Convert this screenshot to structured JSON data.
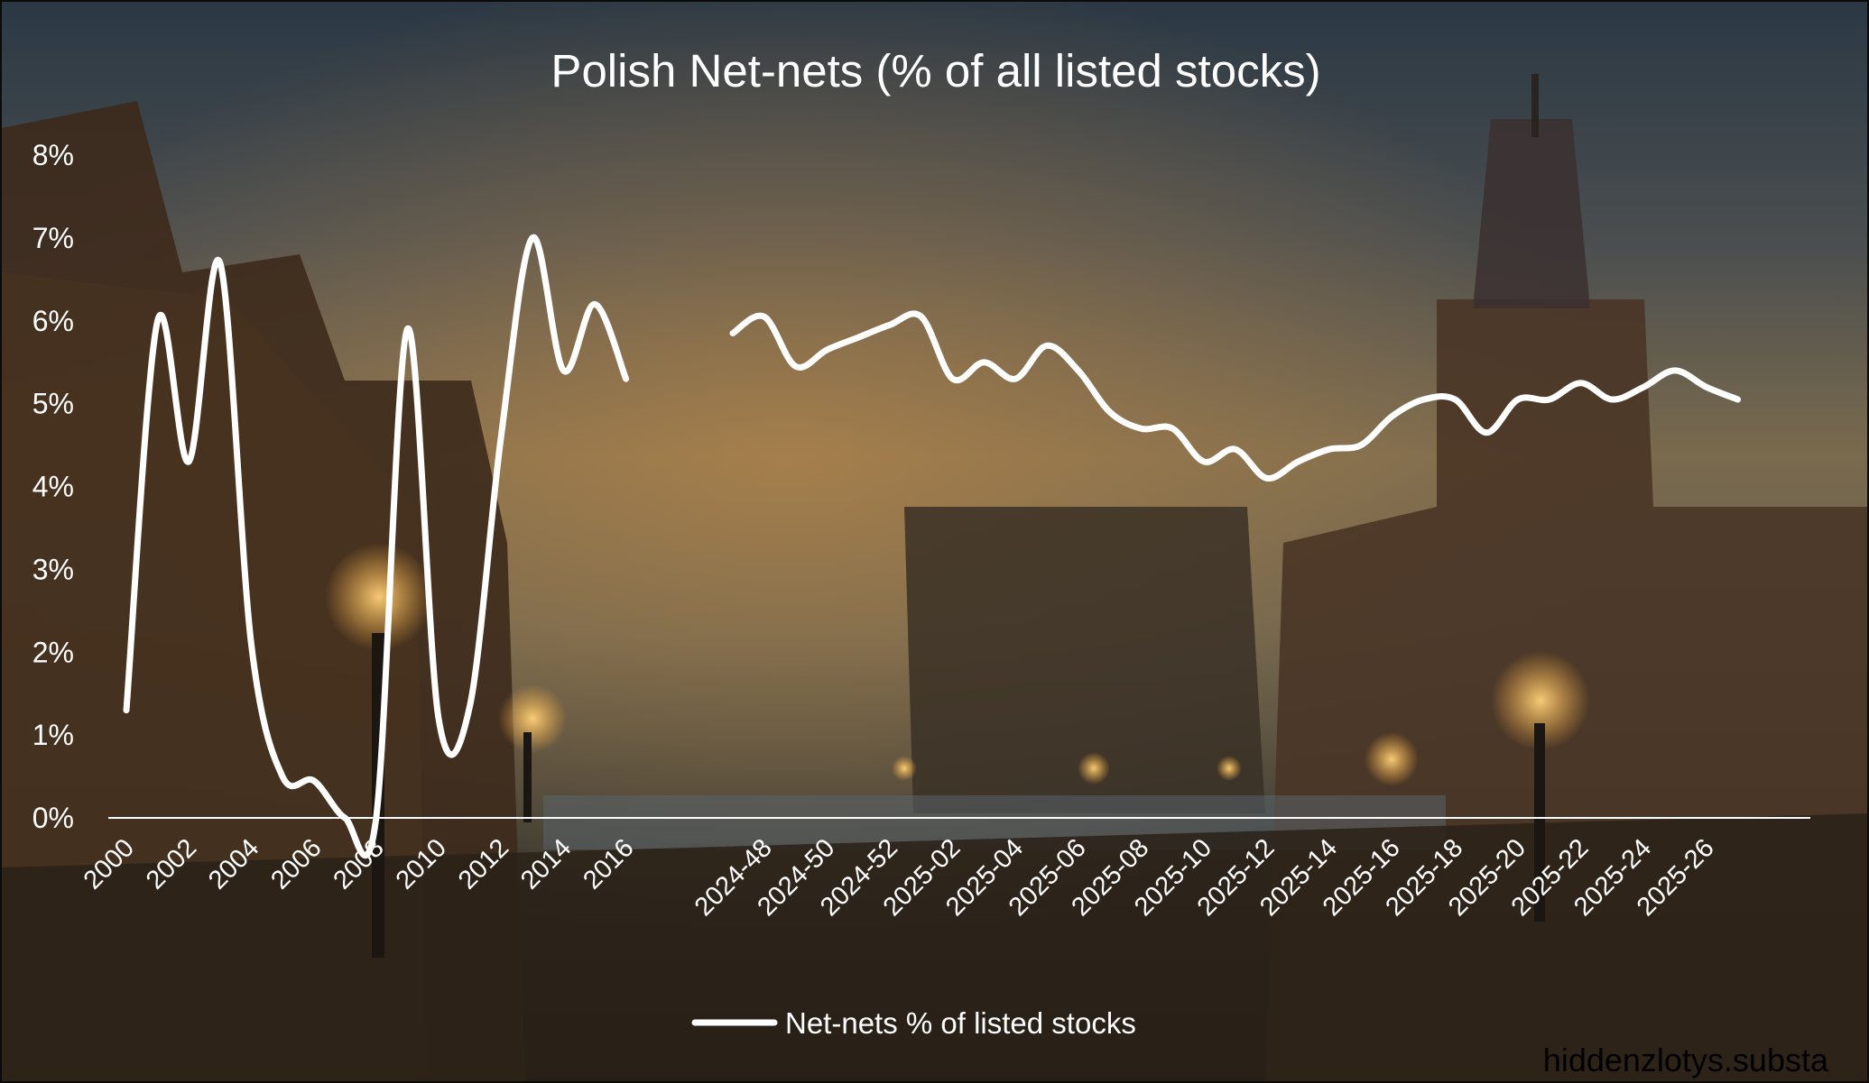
{
  "chart_data": {
    "type": "line",
    "title": "Polish Net-nets (% of all listed stocks)",
    "xlabel": "",
    "ylabel": "",
    "ylim": [
      0,
      8
    ],
    "y_ticks": [
      "0%",
      "1%",
      "2%",
      "3%",
      "4%",
      "5%",
      "6%",
      "7%",
      "8%"
    ],
    "grid": false,
    "legend_position": "bottom-center",
    "line_color": "#ffffff",
    "segments": [
      {
        "x_tick_labels": [
          "2000",
          "2002",
          "2004",
          "2006",
          "2008",
          "2010",
          "2012",
          "2014",
          "2016"
        ],
        "x": [
          2000,
          2001,
          2002,
          2003,
          2004,
          2005,
          2006,
          2007,
          2008,
          2009,
          2010,
          2011,
          2012,
          2013,
          2014,
          2015,
          2016
        ],
        "values": [
          1.3,
          6.0,
          4.3,
          6.7,
          2.1,
          0.5,
          0.45,
          0.0,
          0.0,
          5.9,
          1.2,
          1.35,
          4.6,
          7.0,
          5.4,
          6.2,
          5.3
        ]
      },
      {
        "x_tick_labels": [
          "2024-48",
          "2024-50",
          "2024-52",
          "2025-02",
          "2025-04",
          "2025-06",
          "2025-08",
          "2025-10",
          "2025-12",
          "2025-14",
          "2025-16",
          "2025-18",
          "2025-20",
          "2025-22",
          "2025-24",
          "2025-26"
        ],
        "x": [
          "2024-47",
          "2024-48",
          "2024-49",
          "2024-50",
          "2024-51",
          "2024-52",
          "2025-01",
          "2025-02",
          "2025-03",
          "2025-04",
          "2025-05",
          "2025-06",
          "2025-07",
          "2025-08",
          "2025-09",
          "2025-10",
          "2025-11",
          "2025-12",
          "2025-13",
          "2025-14",
          "2025-15",
          "2025-16",
          "2025-17",
          "2025-18",
          "2025-19",
          "2025-20",
          "2025-21",
          "2025-22",
          "2025-23",
          "2025-24",
          "2025-25",
          "2025-26",
          "2025-27"
        ],
        "values": [
          5.85,
          6.05,
          5.45,
          5.65,
          5.8,
          5.95,
          6.05,
          5.3,
          5.5,
          5.3,
          5.7,
          5.4,
          4.9,
          4.7,
          4.7,
          4.3,
          4.45,
          4.1,
          4.3,
          4.45,
          4.5,
          4.85,
          5.05,
          5.05,
          4.65,
          5.05,
          5.05,
          5.25,
          5.05,
          5.2,
          5.4,
          5.2,
          5.05
        ]
      }
    ],
    "series": [
      {
        "name": "Net-nets % of listed stocks",
        "color": "#ffffff"
      }
    ]
  },
  "footer": {
    "credit": "hiddenzlotys.substa"
  }
}
